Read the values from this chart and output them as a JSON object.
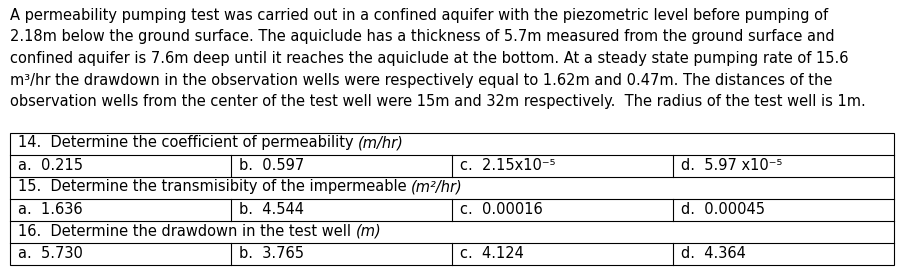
{
  "bg_color": "#ffffff",
  "text_color": "#000000",
  "para_fontsize": 10.5,
  "table_fontsize": 10.5,
  "para_lines": [
    "A permeability pumping test was carried out in a confined aquifer with the piezometric level before pumping of",
    "2.18m below the ground surface. The aquiclude has a thickness of 5.7m measured from the ground surface and",
    "confined aquifer is 7.6m deep until it reaches the aquiclude at the bottom. At a steady state pumping rate of 15.6",
    "m³/hr the drawdown in the observation wells were respectively equal to 1.62m and 0.47m. The distances of the",
    "observation wells from the center of the test well were 15m and 32m respectively.  The radius of the test well is 1m."
  ],
  "table_rows": [
    {
      "type": "header",
      "normal": "14.  Determine the coefficient of permeability ",
      "italic": "(m/hr)"
    },
    {
      "type": "options",
      "cells": [
        {
          "label": "a.",
          "value": "0.215"
        },
        {
          "label": "b.",
          "value": "0.597"
        },
        {
          "label": "c.",
          "value": "2.15x10⁻⁵"
        },
        {
          "label": "d.",
          "value": "5.97 x10⁻⁵"
        }
      ]
    },
    {
      "type": "header",
      "normal": "15.  Determine the transmisibity of the impermeable ",
      "italic": "(m²/hr)"
    },
    {
      "type": "options",
      "cells": [
        {
          "label": "a.",
          "value": "1.636"
        },
        {
          "label": "b.",
          "value": "4.544"
        },
        {
          "label": "c.",
          "value": "0.00016"
        },
        {
          "label": "d.",
          "value": "0.00045"
        }
      ]
    },
    {
      "type": "header",
      "normal": "16.  Determine the drawdown in the test well ",
      "italic": "(m)"
    },
    {
      "type": "options",
      "cells": [
        {
          "label": "a.",
          "value": "5.730"
        },
        {
          "label": "b.",
          "value": "3.765"
        },
        {
          "label": "c.",
          "value": "4.124"
        },
        {
          "label": "d.",
          "value": "4.364"
        }
      ]
    }
  ],
  "fig_width": 9.04,
  "fig_height": 2.76,
  "dpi": 100
}
